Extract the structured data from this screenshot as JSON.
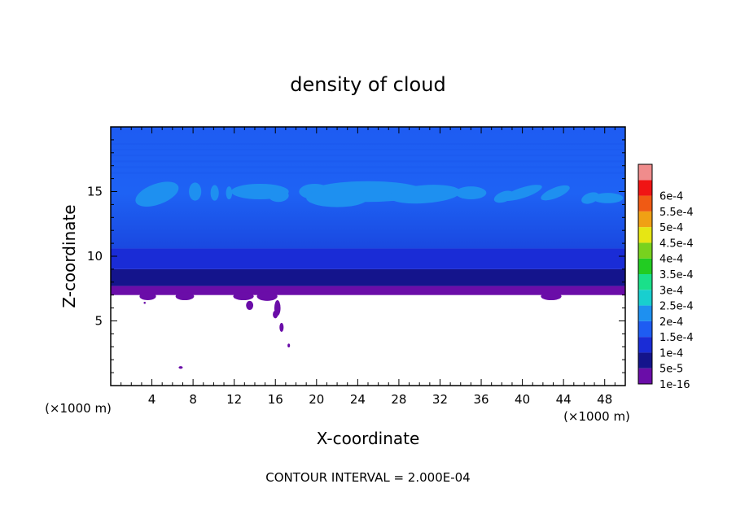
{
  "chart_data": {
    "type": "heatmap",
    "title": "density of cloud",
    "xlabel": "X-coordinate",
    "ylabel": "Z-coordinate",
    "x_unit": "(×1000 m)",
    "y_unit": "(×1000 m)",
    "xlim": [
      0,
      50
    ],
    "ylim": [
      0,
      20
    ],
    "x_ticks": [
      4,
      8,
      12,
      16,
      20,
      24,
      28,
      32,
      36,
      40,
      44,
      48
    ],
    "y_ticks": [
      5,
      10,
      15
    ],
    "footer": "CONTOUR INTERVAL = 2.000E-04",
    "colorbar": {
      "labels": [
        "1e-16",
        "5e-5",
        "1e-4",
        "1.5e-4",
        "2e-4",
        "2.5e-4",
        "3e-4",
        "3.5e-4",
        "4e-4",
        "4.5e-4",
        "5e-4",
        "5.5e-4",
        "6e-4"
      ],
      "colors": [
        "#6a0da8",
        "#14148c",
        "#1a2cd6",
        "#1e5cf2",
        "#1e90f0",
        "#18cfcf",
        "#1ae08a",
        "#22cc22",
        "#78d21e",
        "#e6e614",
        "#f0a014",
        "#f05a14",
        "#f01414",
        "#f08c8c"
      ]
    },
    "layers": [
      {
        "z_range": [
          0,
          7.0
        ],
        "value": "0 (clear)",
        "color": "#ffffff"
      },
      {
        "z_range": [
          7.0,
          7.7
        ],
        "value": "1e-16",
        "color": "#6a0da8"
      },
      {
        "z_range": [
          7.7,
          9.0
        ],
        "value": "5e-5",
        "color": "#14148c"
      },
      {
        "z_range": [
          9.0,
          10.6
        ],
        "value": "1e-4",
        "color": "#1a2cd6"
      },
      {
        "z_range": [
          10.6,
          20.0
        ],
        "value": "1.5e-4",
        "color": "#1e5cf2"
      }
    ],
    "patches": {
      "color": "#1e90f0",
      "description": "higher-density cloud streaks near z ≈ 14–15.5 across x ≈ 3–50"
    }
  }
}
